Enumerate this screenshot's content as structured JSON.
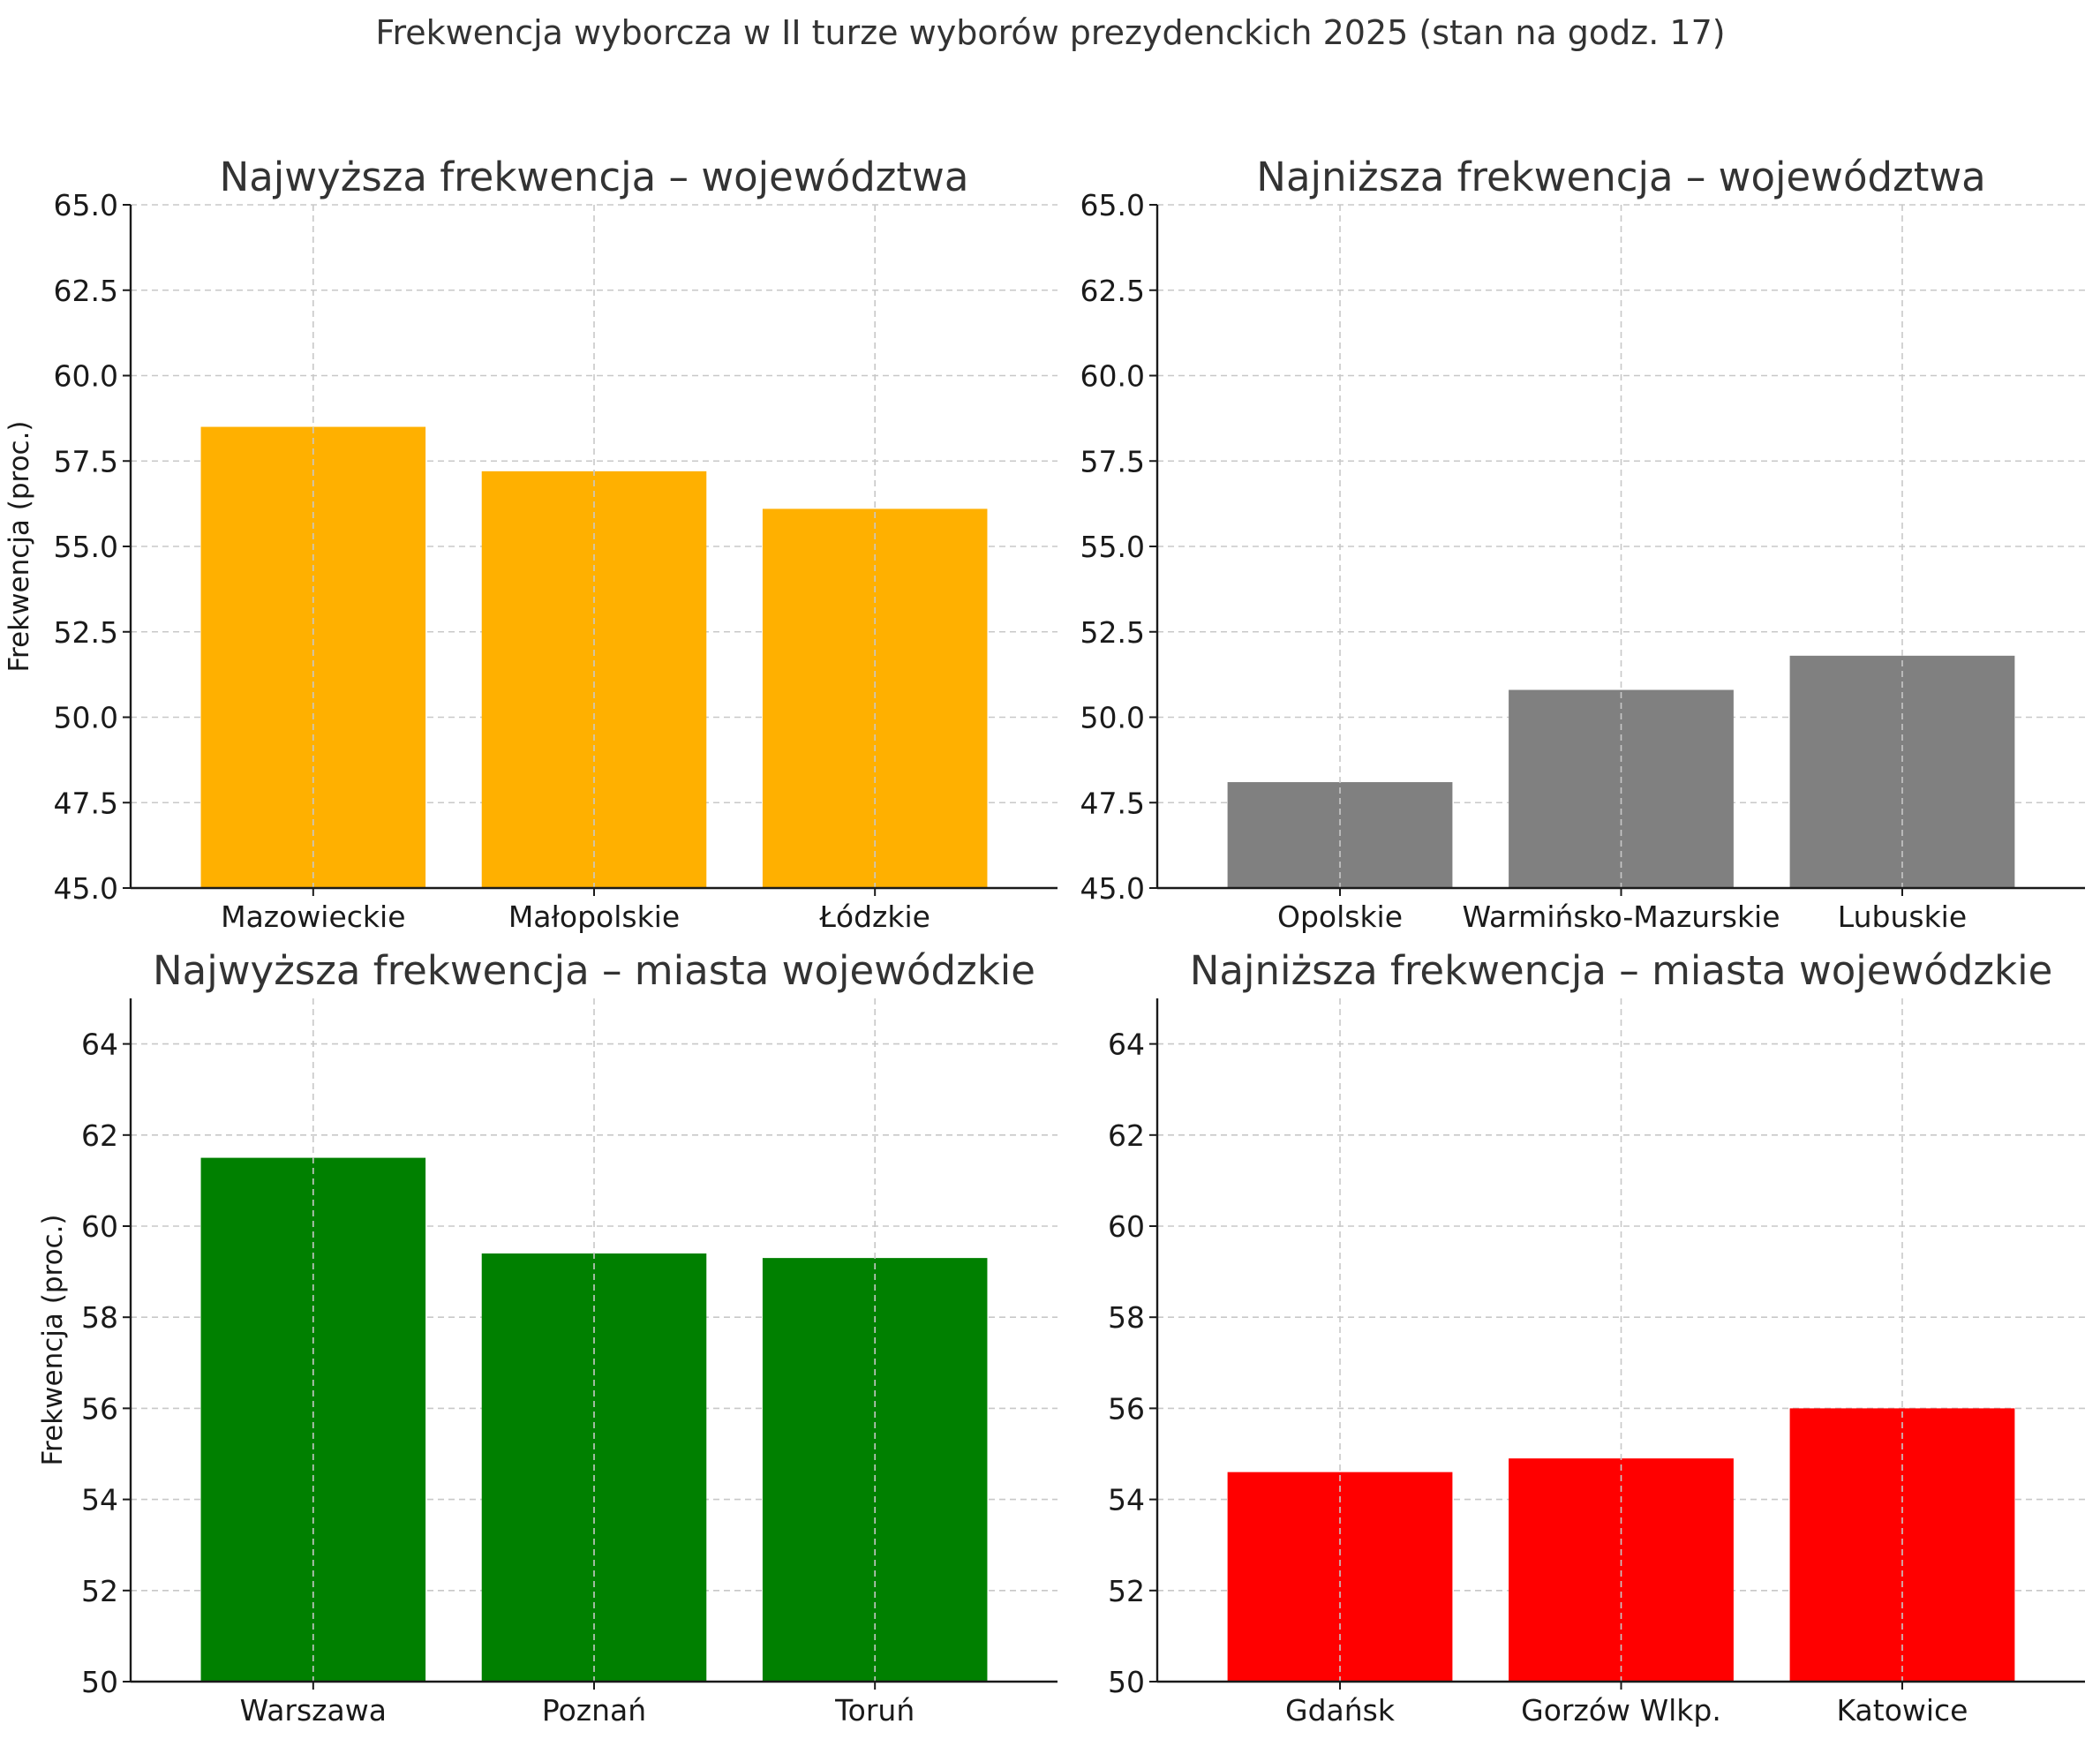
{
  "suptitle": "Frekwencja wyborcza w II turze wyborów prezydenckich 2025 (stan na godz. 17)",
  "chart_data": [
    {
      "type": "bar",
      "title": "Najwyższa frekwencja – województwa",
      "ylabel": "Frekwencja (proc.)",
      "categories": [
        "Mazowieckie",
        "Małopolskie",
        "Łódzkie"
      ],
      "values": [
        58.5,
        57.2,
        56.1
      ],
      "ylim": [
        45,
        65
      ],
      "yticks": [
        45,
        47.5,
        50,
        52.5,
        55,
        57.5,
        60,
        62.5,
        65
      ],
      "ytick_labels": [
        "45.0",
        "47.5",
        "50.0",
        "52.5",
        "55.0",
        "57.5",
        "60.0",
        "62.5",
        "65.0"
      ],
      "color": "#FFB000",
      "grid": true
    },
    {
      "type": "bar",
      "title": "Najniższa frekwencja – województwa",
      "ylabel": "",
      "categories": [
        "Opolskie",
        "Warmińsko-Mazurskie",
        "Lubuskie"
      ],
      "values": [
        48.1,
        50.8,
        51.8
      ],
      "ylim": [
        45,
        65
      ],
      "yticks": [
        45,
        47.5,
        50,
        52.5,
        55,
        57.5,
        60,
        62.5,
        65
      ],
      "ytick_labels": [
        "45.0",
        "47.5",
        "50.0",
        "52.5",
        "55.0",
        "57.5",
        "60.0",
        "62.5",
        "65.0"
      ],
      "color": "#808080",
      "grid": true
    },
    {
      "type": "bar",
      "title": "Najwyższa frekwencja – miasta wojewódzkie",
      "ylabel": "Frekwencja (proc.)",
      "categories": [
        "Warszawa",
        "Poznań",
        "Toruń"
      ],
      "values": [
        61.5,
        59.4,
        59.3
      ],
      "ylim": [
        50,
        65
      ],
      "yticks": [
        50,
        52,
        54,
        56,
        58,
        60,
        62,
        64
      ],
      "ytick_labels": [
        "50",
        "52",
        "54",
        "56",
        "58",
        "60",
        "62",
        "64"
      ],
      "color": "#008000",
      "grid": true
    },
    {
      "type": "bar",
      "title": "Najniższa frekwencja – miasta wojewódzkie",
      "ylabel": "",
      "categories": [
        "Gdańsk",
        "Gorzów Wlkp.",
        "Katowice"
      ],
      "values": [
        54.6,
        54.9,
        56.0
      ],
      "ylim": [
        50,
        65
      ],
      "yticks": [
        50,
        52,
        54,
        56,
        58,
        60,
        62,
        64
      ],
      "ytick_labels": [
        "50",
        "52",
        "54",
        "56",
        "58",
        "60",
        "62",
        "64"
      ],
      "color": "#FF0000",
      "grid": true
    }
  ]
}
